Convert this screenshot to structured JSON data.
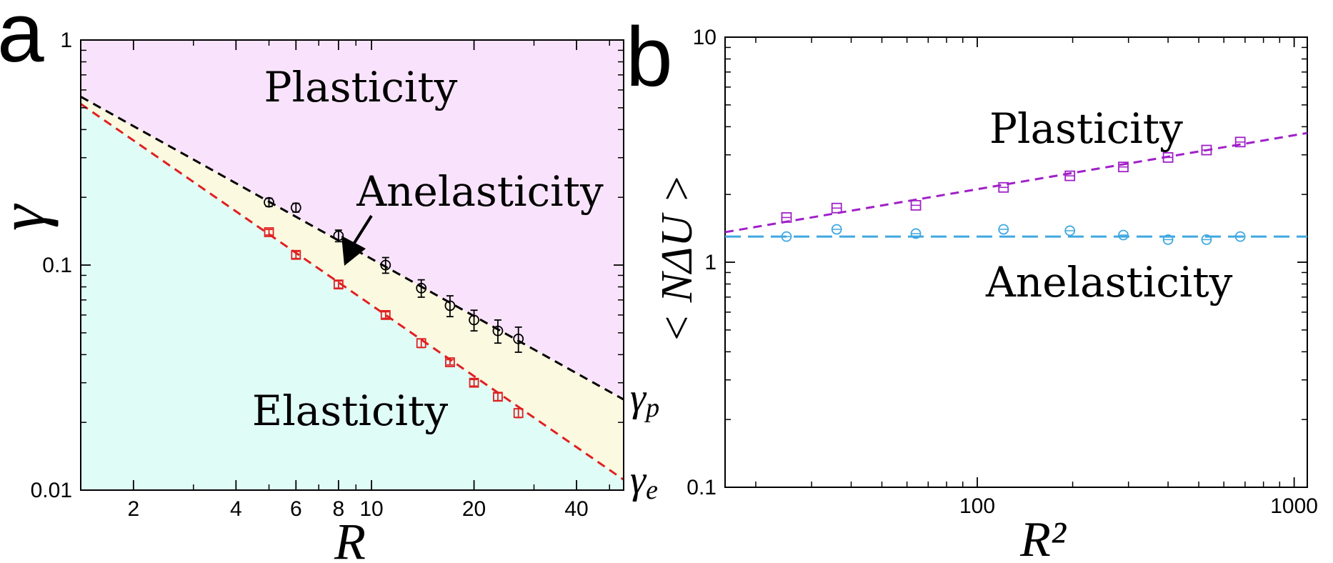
{
  "chart_data": [
    {
      "panel": "a",
      "type": "scatter",
      "xscale": "log",
      "yscale": "log",
      "xlabel": "R",
      "ylabel": "γ",
      "xlim": [
        1.4,
        55
      ],
      "ylim": [
        0.01,
        1
      ],
      "xticks": [
        2,
        4,
        6,
        8,
        10,
        20,
        40
      ],
      "xtick_labels": [
        "2",
        "4",
        "6",
        "8",
        "10",
        "20",
        "40"
      ],
      "yticks": [
        1,
        0.1,
        0.01
      ],
      "ytick_labels": [
        "1",
        "0.1",
        "0.01"
      ],
      "region_labels": {
        "plasticity": "Plasticity",
        "anelasticity": "Anelasticity",
        "elasticity": "Elasticity"
      },
      "line_labels": {
        "gamma_p": "γp",
        "gamma_e": "γe"
      },
      "colors": {
        "plasticity": "#f9e3fc",
        "anelasticity": "#fcf9e1",
        "elasticity": "#e0fcf6",
        "gamma_p": "#000000",
        "gamma_e": "#e02020"
      },
      "series": [
        {
          "name": "gamma_p",
          "marker": "circle",
          "color": "#000000",
          "x": [
            5,
            6,
            8,
            11,
            14,
            17,
            20,
            23.5,
            27
          ],
          "y": [
            0.19,
            0.18,
            0.135,
            0.1,
            0.079,
            0.066,
            0.057,
            0.051,
            0.047
          ],
          "err": [
            0.008,
            0.008,
            0.008,
            0.008,
            0.007,
            0.007,
            0.006,
            0.006,
            0.006
          ]
        },
        {
          "name": "gamma_e",
          "marker": "square",
          "color": "#e02020",
          "x": [
            5,
            6,
            8,
            11,
            14,
            17,
            20,
            23.5,
            27
          ],
          "y": [
            0.14,
            0.111,
            0.082,
            0.06,
            0.045,
            0.037,
            0.03,
            0.026,
            0.022
          ],
          "err": [
            0.004,
            0.004,
            0.003,
            0.002,
            0.002,
            0.001,
            0.001,
            0.001,
            0.001
          ]
        }
      ],
      "fit_lines": [
        {
          "name": "gamma_p_fit",
          "color": "#000000",
          "x": [
            1.4,
            52
          ],
          "y": [
            0.56,
            0.0265
          ]
        },
        {
          "name": "gamma_e_fit",
          "color": "#e02020",
          "x": [
            1.4,
            52
          ],
          "y": [
            0.52,
            0.0118
          ]
        }
      ]
    },
    {
      "panel": "b",
      "type": "scatter",
      "xscale": "log",
      "yscale": "log",
      "xlabel": "R²",
      "ylabel": "< NΔU >",
      "xlim": [
        16,
        1100
      ],
      "ylim": [
        0.1,
        10
      ],
      "xticks": [
        100,
        1000
      ],
      "xtick_labels": [
        "100",
        "1000"
      ],
      "yticks": [
        10,
        1,
        0.1
      ],
      "ytick_labels": [
        "10",
        "1",
        "0.1"
      ],
      "region_labels": {
        "plasticity": "Plasticity",
        "anelasticity": "Anelasticity"
      },
      "colors": {
        "plasticity": "#a020c8",
        "anelasticity": "#40a8e0"
      },
      "series": [
        {
          "name": "Plasticity",
          "marker": "square",
          "color": "#a020c8",
          "x": [
            25,
            36,
            64,
            121,
            196,
            289,
            400,
            529,
            676
          ],
          "y": [
            1.58,
            1.74,
            1.79,
            2.15,
            2.42,
            2.65,
            2.92,
            3.15,
            3.42
          ]
        },
        {
          "name": "Anelasticity",
          "marker": "circle",
          "color": "#40a8e0",
          "x": [
            25,
            36,
            64,
            121,
            196,
            289,
            400,
            529,
            676
          ],
          "y": [
            1.3,
            1.4,
            1.34,
            1.4,
            1.38,
            1.32,
            1.26,
            1.26,
            1.3
          ]
        }
      ],
      "fit_lines": [
        {
          "name": "plasticity_fit",
          "color": "#a020c8",
          "x": [
            16,
            1100
          ],
          "y": [
            1.36,
            3.75
          ]
        },
        {
          "name": "anelasticity_fit",
          "color": "#40a8e0",
          "x": [
            16,
            1100
          ],
          "y": [
            1.3,
            1.3
          ]
        }
      ]
    }
  ],
  "labels": {
    "panel_a": "a",
    "panel_b": "b"
  }
}
